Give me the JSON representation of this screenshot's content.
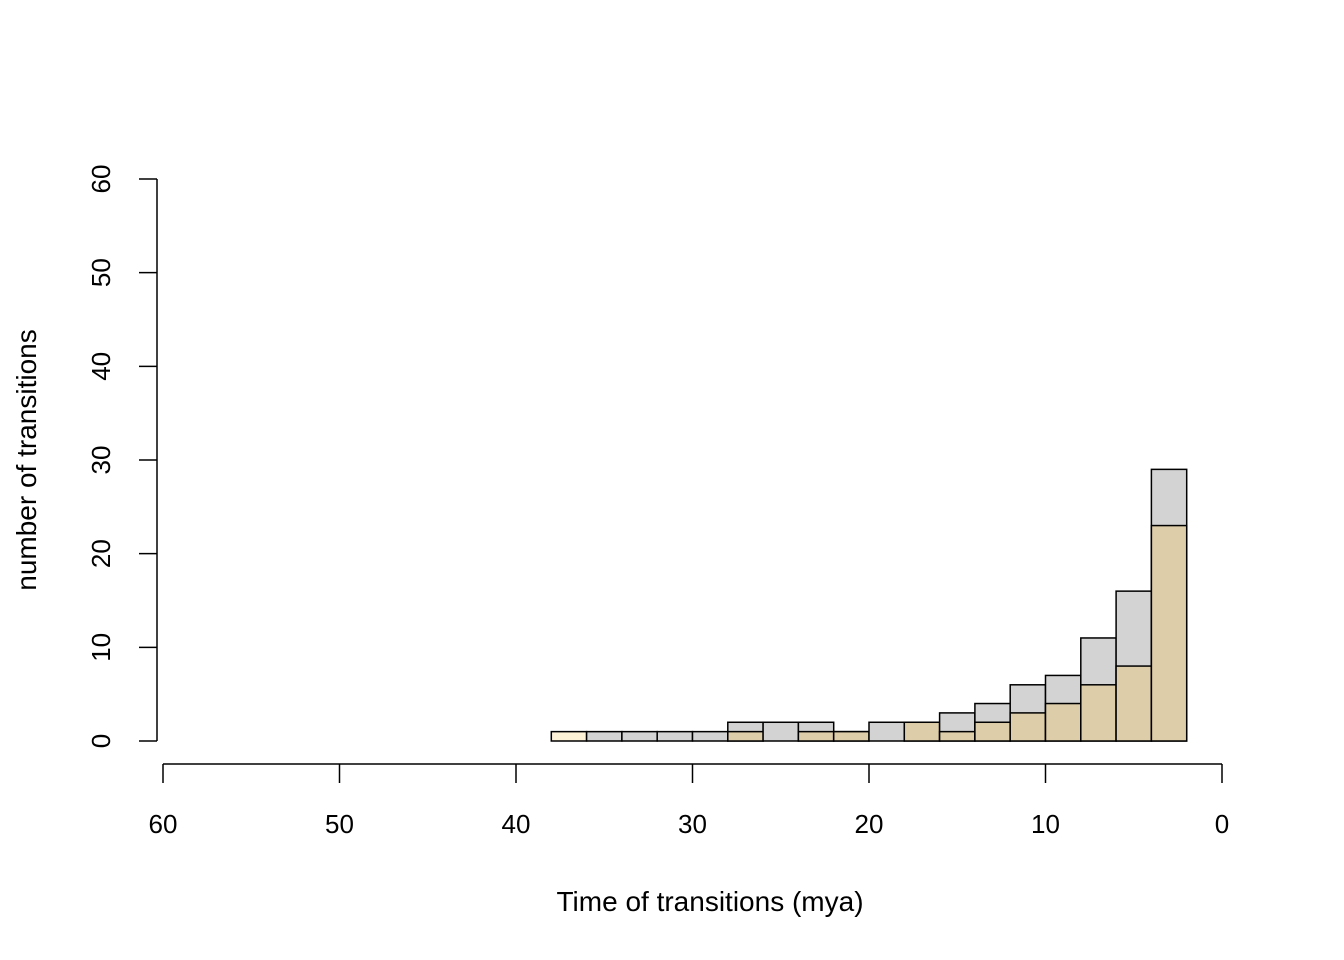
{
  "chart_data": {
    "type": "bar",
    "stacked": false,
    "overlay": true,
    "xlabel": "Time of transitions (mya)",
    "ylabel": "number of transitions",
    "xlim": [
      60,
      0
    ],
    "x_reversed": true,
    "ylim": [
      0,
      60
    ],
    "x_ticks": [
      60,
      50,
      40,
      30,
      20,
      10,
      0
    ],
    "y_ticks": [
      0,
      10,
      20,
      30,
      40,
      50,
      60
    ],
    "x_tick_labels": [
      "60",
      "50",
      "40",
      "30",
      "20",
      "10",
      "0"
    ],
    "y_tick_labels": [
      "0",
      "10",
      "20",
      "30",
      "40",
      "50",
      "60"
    ],
    "bin_width": 2,
    "bin_starts": [
      38,
      36,
      34,
      32,
      30,
      28,
      26,
      24,
      22,
      20,
      18,
      16,
      14,
      12,
      10,
      8,
      6,
      4,
      2,
      0
    ],
    "series": [
      {
        "color": "#d3d3d3",
        "values": [
          0,
          0,
          1,
          1,
          1,
          1,
          2,
          2,
          2,
          1,
          2,
          2,
          3,
          4,
          6,
          7,
          11,
          16,
          29,
          0
        ]
      },
      {
        "color": "#ddcda8",
        "values": [
          0,
          1,
          0,
          0,
          0,
          0,
          1,
          0,
          1,
          1,
          0,
          2,
          1,
          2,
          3,
          4,
          6,
          8,
          23,
          0
        ]
      }
    ],
    "light_bar_color": "#fdf1d6",
    "grid": false,
    "legend": "none"
  }
}
